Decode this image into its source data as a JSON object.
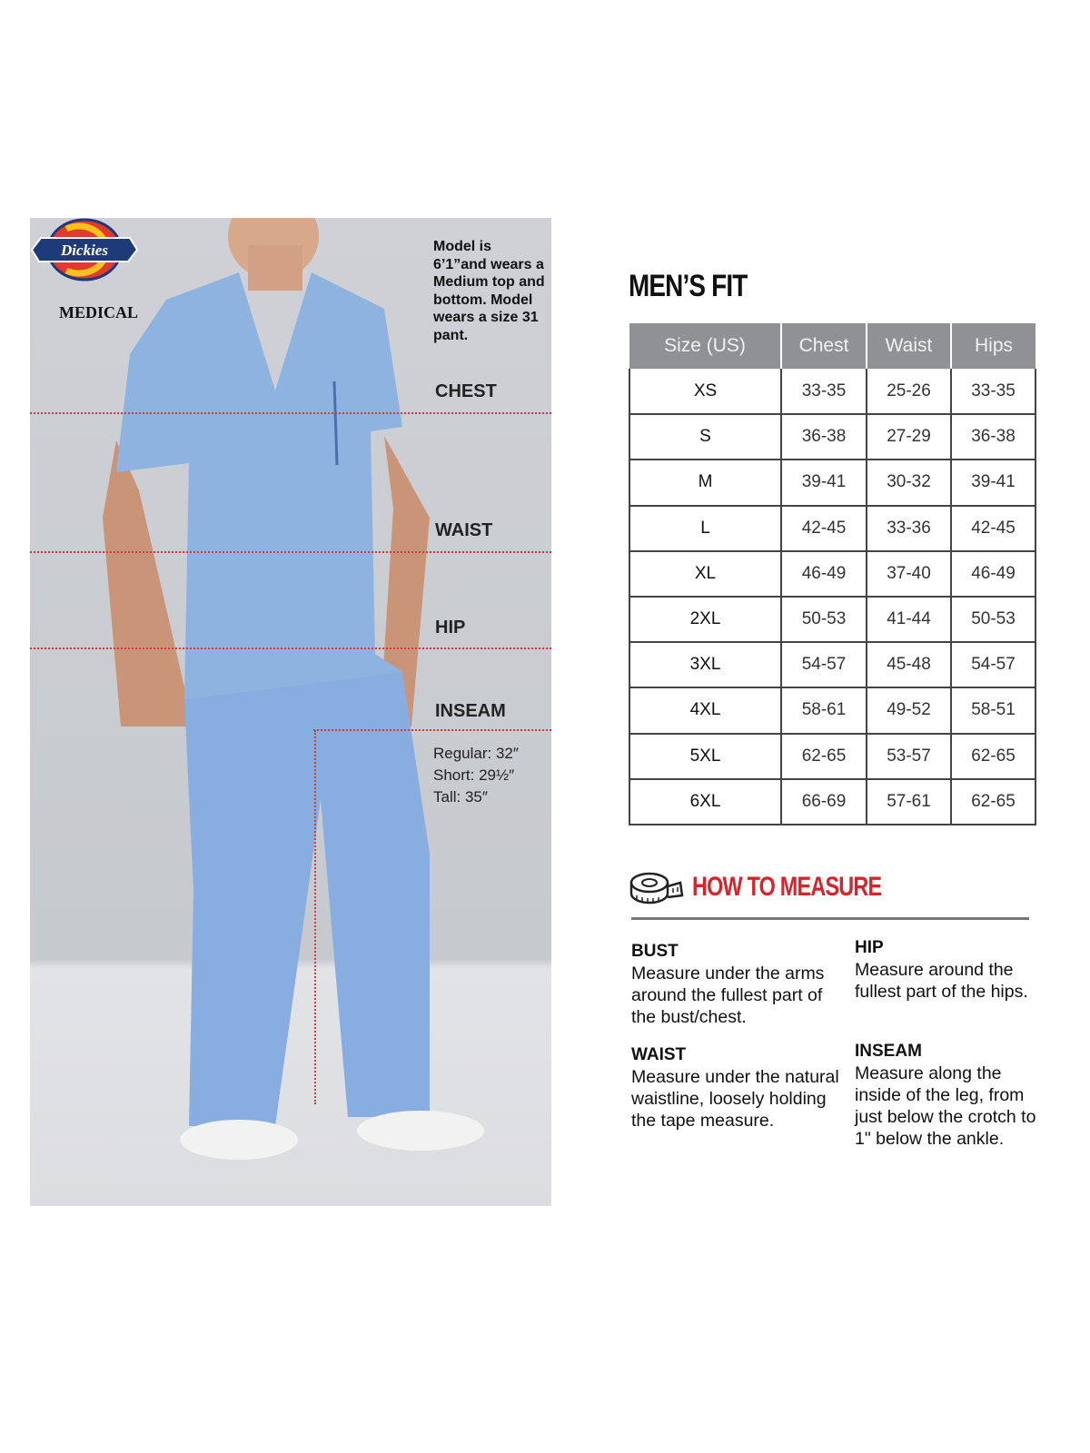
{
  "brand": {
    "logo_text": "Dickies",
    "sub": "MEDICAL"
  },
  "model_note": "Model is 6’1”and wears a Medium top and bottom. Model wears a size 31 pant.",
  "measure_labels": {
    "chest": "CHEST",
    "waist": "WAIST",
    "hip": "HIP",
    "inseam": "INSEAM"
  },
  "inseam_lengths": [
    "Regular: 32″",
    "Short: 29½″",
    "Tall: 35″"
  ],
  "colors": {
    "header_gray": "#8f9195",
    "accent_red": "#d8232a",
    "scrub_blue": "#8fb3e0"
  },
  "fit_title": "MEN’S FIT",
  "table": {
    "headers": [
      "Size (US)",
      "Chest",
      "Waist",
      "Hips"
    ],
    "rows": [
      [
        "XS",
        "33-35",
        "25-26",
        "33-35"
      ],
      [
        "S",
        "36-38",
        "27-29",
        "36-38"
      ],
      [
        "M",
        "39-41",
        "30-32",
        "39-41"
      ],
      [
        "L",
        "42-45",
        "33-36",
        "42-45"
      ],
      [
        "XL",
        "46-49",
        "37-40",
        "46-49"
      ],
      [
        "2XL",
        "50-53",
        "41-44",
        "50-53"
      ],
      [
        "3XL",
        "54-57",
        "45-48",
        "54-57"
      ],
      [
        "4XL",
        "58-61",
        "49-52",
        "58-51"
      ],
      [
        "5XL",
        "62-65",
        "53-57",
        "62-65"
      ],
      [
        "6XL",
        "66-69",
        "57-61",
        "62-65"
      ]
    ]
  },
  "how_to_measure": {
    "title": "HOW TO MEASURE",
    "icon": "tape-measure-icon",
    "items": [
      {
        "label": "BUST",
        "text": "Measure under the arms around the fullest part of the bust/chest."
      },
      {
        "label": "WAIST",
        "text": "Measure under the natural waistline, loosely holding the tape measure."
      },
      {
        "label": "HIP",
        "text": "Measure around the fullest part of the hips."
      },
      {
        "label": "INSEAM",
        "text": "Measure along the inside of the leg, from just below the crotch to 1\" below the ankle."
      }
    ]
  }
}
